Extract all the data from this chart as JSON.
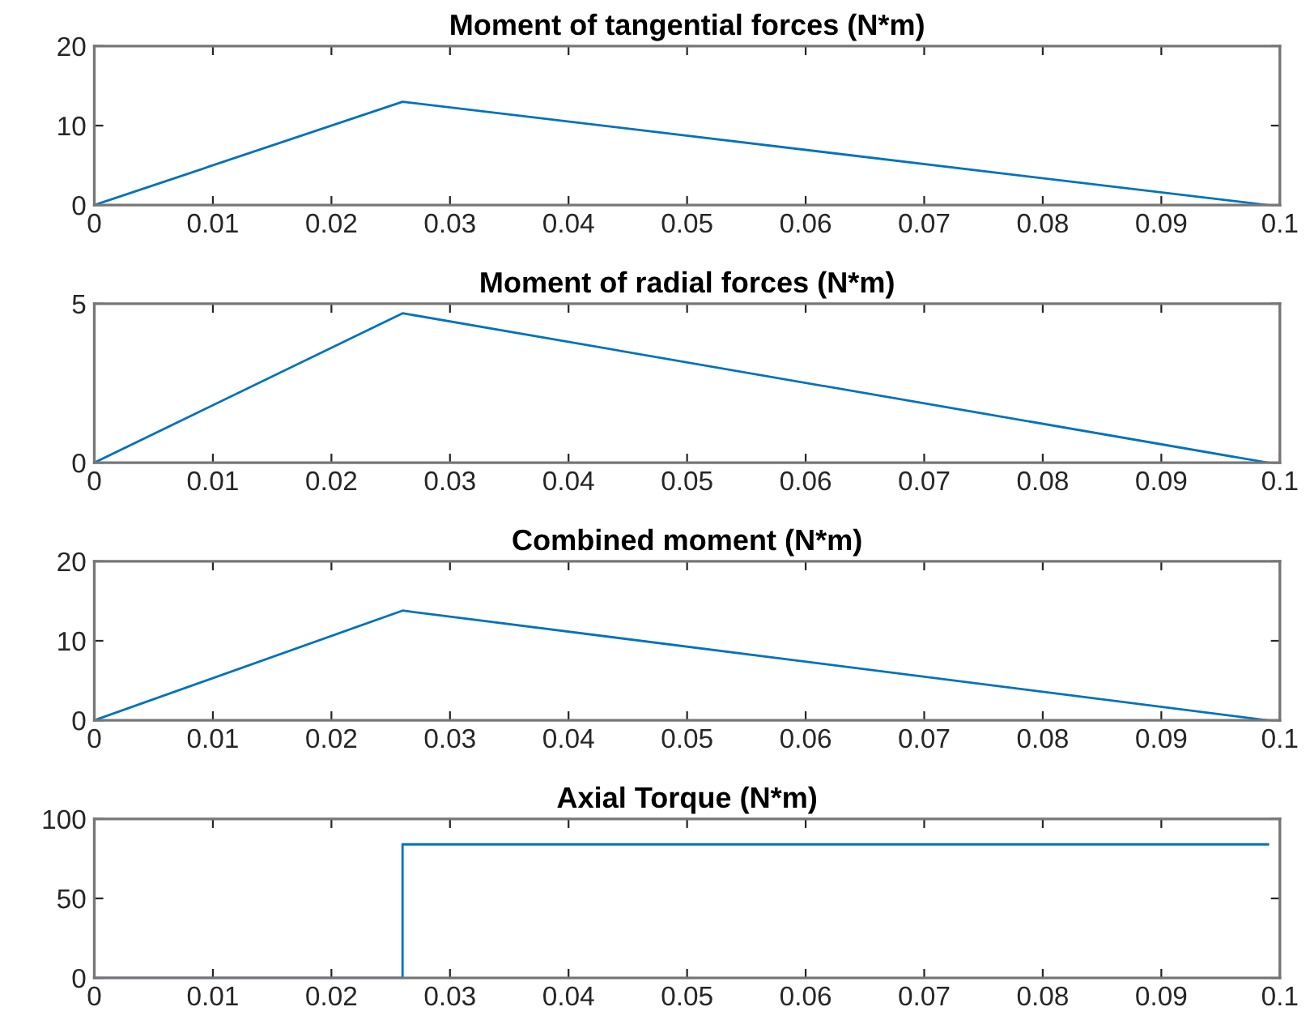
{
  "chart_data": [
    {
      "type": "line",
      "title": "Moment of tangential forces (N*m)",
      "x": [
        0,
        0.026,
        0.099
      ],
      "series": [
        {
          "color": "#0072bd",
          "values": [
            0,
            13.0,
            0
          ]
        }
      ],
      "xlim": [
        0,
        0.1
      ],
      "xticks": [
        0,
        0.01,
        0.02,
        0.03,
        0.04,
        0.05,
        0.06,
        0.07,
        0.08,
        0.09,
        0.1
      ],
      "ylim": [
        0,
        20
      ],
      "yticks": [
        0,
        10,
        20
      ],
      "grid": false,
      "legend": false
    },
    {
      "type": "line",
      "title": "Moment of radial forces (N*m)",
      "x": [
        0,
        0.026,
        0.099
      ],
      "series": [
        {
          "color": "#0072bd",
          "values": [
            0,
            4.7,
            0
          ]
        }
      ],
      "xlim": [
        0,
        0.1
      ],
      "xticks": [
        0,
        0.01,
        0.02,
        0.03,
        0.04,
        0.05,
        0.06,
        0.07,
        0.08,
        0.09,
        0.1
      ],
      "ylim": [
        0,
        5
      ],
      "yticks": [
        0,
        5
      ],
      "grid": false,
      "legend": false
    },
    {
      "type": "line",
      "title": "Combined moment (N*m)",
      "x": [
        0,
        0.026,
        0.099
      ],
      "series": [
        {
          "color": "#0072bd",
          "values": [
            0,
            13.8,
            0
          ]
        }
      ],
      "xlim": [
        0,
        0.1
      ],
      "xticks": [
        0,
        0.01,
        0.02,
        0.03,
        0.04,
        0.05,
        0.06,
        0.07,
        0.08,
        0.09,
        0.1
      ],
      "ylim": [
        0,
        20
      ],
      "yticks": [
        0,
        10,
        20
      ],
      "grid": false,
      "legend": false
    },
    {
      "type": "line",
      "title": "Axial Torque (N*m)",
      "x": [
        0,
        0.026,
        0.026,
        0.099
      ],
      "series": [
        {
          "color": "#0072bd",
          "values": [
            0,
            0,
            84,
            84
          ]
        }
      ],
      "xlim": [
        0,
        0.1
      ],
      "xticks": [
        0,
        0.01,
        0.02,
        0.03,
        0.04,
        0.05,
        0.06,
        0.07,
        0.08,
        0.09,
        0.1
      ],
      "ylim": [
        0,
        100
      ],
      "yticks": [
        0,
        50,
        100
      ],
      "grid": false,
      "legend": false
    }
  ]
}
